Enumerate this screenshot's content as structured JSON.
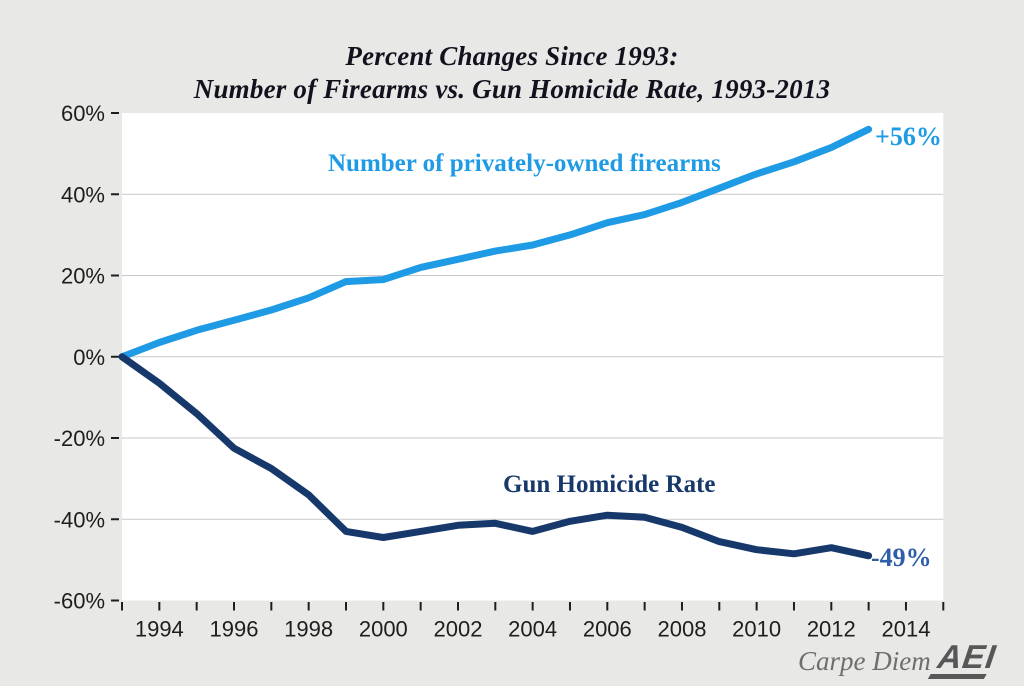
{
  "page": {
    "background": "#e8e8e6",
    "plot_background": "#ffffff"
  },
  "title": {
    "line1": "Percent Changes Since 1993:",
    "line2": "Number of Firearms vs. Gun Homicide Rate, 1993-2013"
  },
  "chart_data": {
    "type": "line",
    "title": "Percent Changes Since 1993: Number of Firearms vs. Gun Homicide Rate, 1993-2013",
    "x": [
      1993,
      1994,
      1995,
      1996,
      1997,
      1998,
      1999,
      2000,
      2001,
      2002,
      2003,
      2004,
      2005,
      2006,
      2007,
      2008,
      2009,
      2010,
      2011,
      2012,
      2013
    ],
    "series": [
      {
        "name": "Number of privately-owned firearms",
        "color": "#1f9be6",
        "end_label": "+56%",
        "end_label_color": "#1f9be6",
        "values": [
          0,
          3.5,
          6.5,
          9,
          11.5,
          14.5,
          18.5,
          19,
          22,
          24,
          26,
          27.5,
          30,
          33,
          35,
          38,
          41.5,
          45,
          48,
          51.5,
          56
        ]
      },
      {
        "name": "Gun Homicide Rate",
        "color": "#17386b",
        "end_label": "-49%",
        "end_label_color": "#2e5ea9",
        "values": [
          0,
          -6.5,
          -14,
          -22.5,
          -27.5,
          -34,
          -43,
          -44.5,
          -43,
          -41.5,
          -41,
          -43,
          -40.5,
          -39,
          -39.5,
          -42,
          -45.5,
          -47.5,
          -48.5,
          -47,
          -49
        ]
      }
    ],
    "xlim": [
      1993,
      2015
    ],
    "ylim": [
      -60,
      60
    ],
    "yticks": [
      60,
      40,
      20,
      0,
      -20,
      -40,
      -60
    ],
    "ytick_labels": [
      "60%",
      "40%",
      "20%",
      "0%",
      "-20%",
      "-40%",
      "-60%"
    ],
    "gridlines": [
      40,
      20,
      0,
      -20,
      -40
    ],
    "xtick_years": [
      1994,
      1996,
      1998,
      2000,
      2002,
      2004,
      2006,
      2008,
      2010,
      2012,
      2014
    ],
    "grid": "horizontal",
    "grid_color": "#c9c9c9",
    "axis_color": "#1e1e1e",
    "legend_position": "inline-labels",
    "line_width": 7
  },
  "footer": {
    "credit": "Carpe Diem",
    "logo": "AEI"
  }
}
